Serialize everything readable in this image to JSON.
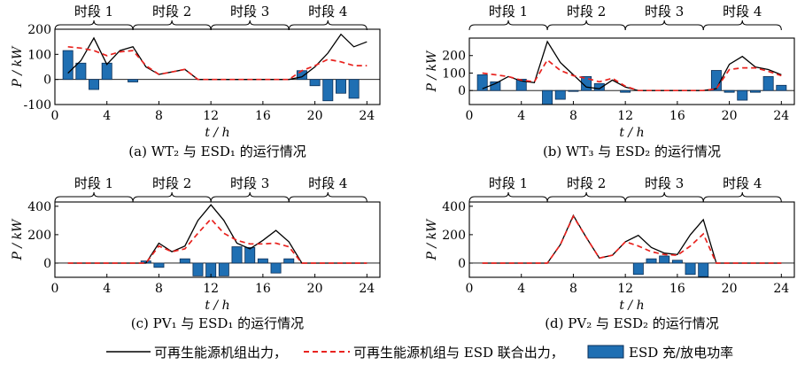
{
  "figure": {
    "period_labels": [
      "时段 1",
      "时段 2",
      "时段 3",
      "时段 4"
    ],
    "legend": {
      "black_line": "可再生能源机组出力，",
      "red_dashed": "可再生能源机组与 ESD 联合出力，",
      "bar": "ESD 充/放电功率"
    },
    "colors": {
      "line": "#000000",
      "dashed": "#e8231f",
      "bar": "#1f6fb3",
      "bar_edge": "#0b2f57"
    }
  },
  "chart_data": [
    {
      "type": "bar",
      "caption": "(a)  WT₂ 与 ESD₁ 的运行情况",
      "ylabel": "P / kW",
      "xlabel": "t / h",
      "xlim": [
        0,
        25
      ],
      "ylim": [
        -100,
        200
      ],
      "xticks": [
        0,
        4,
        8,
        12,
        16,
        20,
        24
      ],
      "yticks": [
        -100,
        0,
        100,
        200
      ],
      "periods": [
        [
          0,
          6
        ],
        [
          6,
          12
        ],
        [
          12,
          18
        ],
        [
          18,
          24
        ]
      ],
      "series": [
        {
          "kind": "line",
          "x": [
            1,
            2,
            3,
            4,
            5,
            6,
            7,
            8,
            9,
            10,
            11,
            12,
            13,
            14,
            15,
            16,
            17,
            18,
            19,
            20,
            21,
            22,
            23,
            24
          ],
          "y": [
            25,
            75,
            165,
            60,
            115,
            130,
            50,
            20,
            30,
            40,
            0,
            0,
            0,
            0,
            0,
            0,
            0,
            0,
            10,
            50,
            105,
            180,
            130,
            150
          ]
        },
        {
          "kind": "dashed",
          "x": [
            1,
            2,
            3,
            4,
            5,
            6,
            7,
            8,
            9,
            10,
            11,
            12,
            13,
            14,
            15,
            16,
            17,
            18,
            19,
            20,
            21,
            22,
            23,
            24
          ],
          "y": [
            130,
            125,
            115,
            95,
            110,
            115,
            55,
            20,
            30,
            40,
            0,
            0,
            0,
            0,
            0,
            0,
            0,
            0,
            35,
            55,
            80,
            70,
            55,
            55
          ]
        },
        {
          "kind": "bar",
          "x": [
            1,
            2,
            3,
            4,
            5,
            6,
            7,
            8,
            9,
            10,
            11,
            12,
            13,
            14,
            15,
            16,
            17,
            18,
            19,
            20,
            21,
            22,
            23,
            24
          ],
          "y": [
            115,
            65,
            -40,
            65,
            0,
            -10,
            0,
            0,
            0,
            0,
            0,
            0,
            0,
            0,
            0,
            0,
            0,
            0,
            35,
            -25,
            -85,
            -55,
            -75,
            0
          ]
        }
      ]
    },
    {
      "type": "bar",
      "caption": "(b)  WT₃ 与 ESD₂ 的运行情况",
      "ylabel": "P / kW",
      "xlabel": "t / h",
      "xlim": [
        0,
        25
      ],
      "ylim": [
        -80,
        300
      ],
      "xticks": [
        0,
        4,
        8,
        12,
        16,
        20,
        24
      ],
      "yticks": [
        0,
        100,
        200
      ],
      "periods": [
        [
          0,
          6
        ],
        [
          6,
          12
        ],
        [
          12,
          18
        ],
        [
          18,
          24
        ]
      ],
      "series": [
        {
          "kind": "line",
          "x": [
            1,
            2,
            3,
            4,
            5,
            6,
            7,
            8,
            9,
            10,
            11,
            12,
            13,
            14,
            15,
            16,
            17,
            18,
            19,
            20,
            21,
            22,
            23,
            24
          ],
          "y": [
            10,
            40,
            80,
            55,
            45,
            280,
            160,
            90,
            20,
            10,
            60,
            20,
            0,
            0,
            0,
            0,
            0,
            0,
            10,
            150,
            195,
            135,
            120,
            90
          ]
        },
        {
          "kind": "dashed",
          "x": [
            1,
            2,
            3,
            4,
            5,
            6,
            7,
            8,
            9,
            10,
            11,
            12,
            13,
            14,
            15,
            16,
            17,
            18,
            19,
            20,
            21,
            22,
            23,
            24
          ],
          "y": [
            100,
            90,
            80,
            60,
            50,
            175,
            115,
            85,
            70,
            50,
            70,
            25,
            0,
            0,
            0,
            0,
            0,
            0,
            10,
            120,
            130,
            130,
            110,
            85
          ]
        },
        {
          "kind": "bar",
          "x": [
            1,
            2,
            3,
            4,
            5,
            6,
            7,
            8,
            9,
            10,
            11,
            12,
            13,
            14,
            15,
            16,
            17,
            18,
            19,
            20,
            21,
            22,
            23,
            24
          ],
          "y": [
            90,
            50,
            0,
            65,
            0,
            -80,
            -50,
            -5,
            80,
            40,
            0,
            -10,
            0,
            0,
            0,
            0,
            0,
            0,
            115,
            -10,
            -55,
            -10,
            80,
            30
          ]
        }
      ]
    },
    {
      "type": "bar",
      "caption": "(c)  PV₁ 与 ESD₁ 的运行情况",
      "ylabel": "P / kW",
      "xlabel": "t / h",
      "xlim": [
        0,
        25
      ],
      "ylim": [
        -100,
        430
      ],
      "xticks": [
        0,
        4,
        8,
        12,
        16,
        20,
        24
      ],
      "yticks": [
        0,
        200,
        400
      ],
      "periods": [
        [
          0,
          6
        ],
        [
          6,
          12
        ],
        [
          12,
          18
        ],
        [
          18,
          24
        ]
      ],
      "series": [
        {
          "kind": "line",
          "x": [
            1,
            2,
            3,
            4,
            5,
            6,
            7,
            8,
            9,
            10,
            11,
            12,
            13,
            14,
            15,
            16,
            17,
            18,
            19,
            20,
            21,
            22,
            23,
            24
          ],
          "y": [
            0,
            0,
            0,
            0,
            0,
            0,
            0,
            140,
            80,
            120,
            300,
            410,
            300,
            140,
            100,
            160,
            230,
            150,
            0,
            0,
            0,
            0,
            0,
            0
          ]
        },
        {
          "kind": "dashed",
          "x": [
            1,
            2,
            3,
            4,
            5,
            6,
            7,
            8,
            9,
            10,
            11,
            12,
            13,
            14,
            15,
            16,
            17,
            18,
            19,
            20,
            21,
            22,
            23,
            24
          ],
          "y": [
            0,
            0,
            0,
            0,
            0,
            0,
            0,
            120,
            80,
            100,
            210,
            310,
            210,
            160,
            135,
            135,
            140,
            115,
            0,
            0,
            0,
            0,
            0,
            0
          ]
        },
        {
          "kind": "bar",
          "x": [
            1,
            2,
            3,
            4,
            5,
            6,
            7,
            8,
            9,
            10,
            11,
            12,
            13,
            14,
            15,
            16,
            17,
            18,
            19,
            20,
            21,
            22,
            23,
            24
          ],
          "y": [
            0,
            0,
            0,
            0,
            0,
            0,
            15,
            -30,
            0,
            30,
            -90,
            -100,
            -90,
            115,
            110,
            30,
            -70,
            30,
            0,
            0,
            0,
            0,
            0,
            0
          ]
        }
      ]
    },
    {
      "type": "bar",
      "caption": "(d)  PV₂ 与 ESD₂ 的运行情况",
      "ylabel": "P / kW",
      "xlabel": "t / h",
      "xlim": [
        0,
        25
      ],
      "ylim": [
        -100,
        430
      ],
      "xticks": [
        0,
        4,
        8,
        12,
        16,
        20,
        24
      ],
      "yticks": [
        0,
        200,
        400
      ],
      "periods": [
        [
          0,
          6
        ],
        [
          6,
          12
        ],
        [
          12,
          18
        ],
        [
          18,
          24
        ]
      ],
      "series": [
        {
          "kind": "line",
          "x": [
            1,
            2,
            3,
            4,
            5,
            6,
            7,
            8,
            9,
            10,
            11,
            12,
            13,
            14,
            15,
            16,
            17,
            18,
            19,
            20,
            21,
            22,
            23,
            24
          ],
          "y": [
            0,
            0,
            0,
            0,
            0,
            0,
            130,
            335,
            180,
            35,
            55,
            150,
            195,
            110,
            70,
            60,
            200,
            305,
            0,
            0,
            0,
            0,
            0,
            0
          ]
        },
        {
          "kind": "dashed",
          "x": [
            1,
            2,
            3,
            4,
            5,
            6,
            7,
            8,
            9,
            10,
            11,
            12,
            13,
            14,
            15,
            16,
            17,
            18,
            19,
            20,
            21,
            22,
            23,
            24
          ],
          "y": [
            0,
            0,
            0,
            0,
            0,
            0,
            130,
            330,
            180,
            35,
            55,
            150,
            120,
            80,
            60,
            55,
            120,
            205,
            0,
            0,
            0,
            0,
            0,
            0
          ]
        },
        {
          "kind": "bar",
          "x": [
            1,
            2,
            3,
            4,
            5,
            6,
            7,
            8,
            9,
            10,
            11,
            12,
            13,
            14,
            15,
            16,
            17,
            18,
            19,
            20,
            21,
            22,
            23,
            24
          ],
          "y": [
            0,
            0,
            0,
            0,
            0,
            0,
            0,
            0,
            0,
            0,
            0,
            0,
            -80,
            30,
            50,
            20,
            -80,
            -95,
            0,
            0,
            0,
            0,
            0,
            0
          ]
        }
      ]
    }
  ]
}
